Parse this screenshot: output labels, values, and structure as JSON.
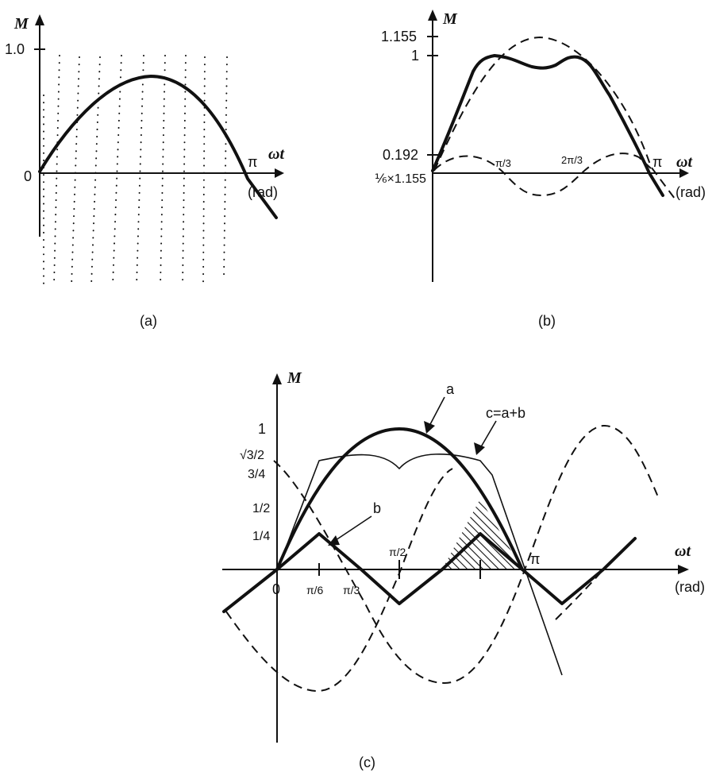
{
  "panel_a": {
    "caption": "(a)",
    "y_axis_label": "M",
    "x_axis_label": "ωt",
    "x_unit": "(rad)",
    "tick_y": "1.0",
    "origin": "0",
    "tick_pi": "π"
  },
  "panel_b": {
    "caption": "(b)",
    "y_axis_label": "M",
    "x_axis_label": "ωt",
    "x_unit": "(rad)",
    "tick_1155": "1.155",
    "tick_1": "1",
    "tick_0192": "0.192",
    "tick_sixth": "⅙×1.155",
    "tick_pi3": "π/3",
    "tick_2pi3": "2π/3",
    "tick_pi": "π"
  },
  "panel_c": {
    "caption": "(c)",
    "y_axis_label": "M",
    "x_axis_label": "ωt",
    "x_unit": "(rad)",
    "tick_1": "1",
    "tick_sqrt3_2": "√3/2",
    "tick_3_4": "3/4",
    "tick_1_2": "1/2",
    "tick_1_4": "1/4",
    "origin": "0",
    "tick_pi6": "π/6",
    "tick_pi3": "π/3",
    "tick_pi2": "π/2",
    "tick_pi": "π",
    "label_a": "a",
    "label_b": "b",
    "label_c": "c=a+b"
  }
}
